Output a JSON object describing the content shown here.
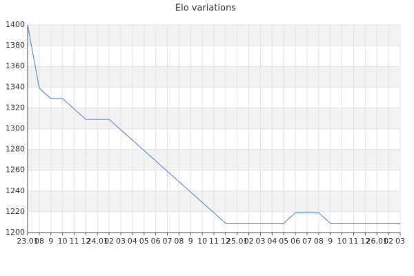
{
  "chart_data": {
    "type": "line",
    "title": "Elo variations",
    "categories": [
      "23.01",
      "08",
      "9",
      "10",
      "11",
      "12",
      "24.01",
      "02",
      "03",
      "04",
      "05",
      "06",
      "07",
      "08",
      "9",
      "10",
      "11",
      "12",
      "25.01",
      "02",
      "03",
      "04",
      "05",
      "06",
      "07",
      "08",
      "9",
      "10",
      "11",
      "12",
      "26.01",
      "02",
      "03"
    ],
    "series": [
      {
        "name": "Elo",
        "color": "#4a7fd6",
        "values": [
          1400,
          1339,
          1329,
          1329,
          1319,
          1309,
          1309,
          1309,
          1299,
          1289,
          1279,
          1269,
          1259,
          1249,
          1239,
          1229,
          1219,
          1209,
          1209,
          1209,
          1209,
          1209,
          1209,
          1219,
          1219,
          1219,
          1209,
          1209,
          1209,
          1209,
          1209,
          1209,
          1209
        ]
      }
    ],
    "ylim": [
      1200,
      1400
    ],
    "yticks": [
      1200,
      1220,
      1240,
      1260,
      1280,
      1300,
      1320,
      1340,
      1360,
      1380,
      1400
    ],
    "grid": true,
    "band_color": "#f2f2f2"
  }
}
